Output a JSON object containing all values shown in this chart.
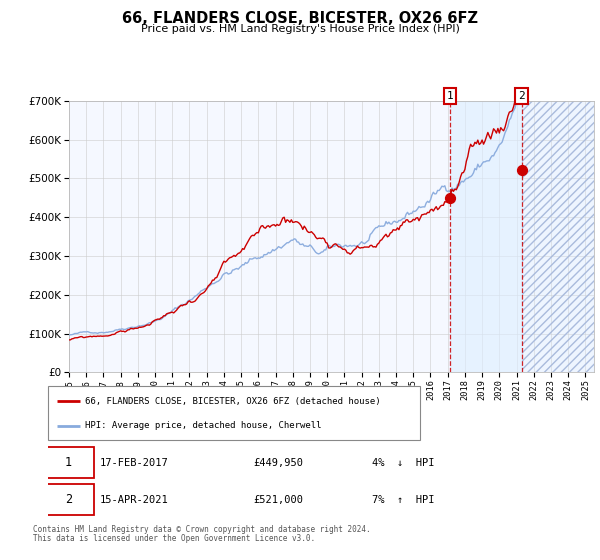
{
  "title1": "66, FLANDERS CLOSE, BICESTER, OX26 6FZ",
  "title2": "Price paid vs. HM Land Registry's House Price Index (HPI)",
  "ylim": [
    0,
    700000
  ],
  "yticks": [
    0,
    100000,
    200000,
    300000,
    400000,
    500000,
    600000,
    700000
  ],
  "ytick_labels": [
    "£0",
    "£100K",
    "£200K",
    "£300K",
    "£400K",
    "£500K",
    "£600K",
    "£700K"
  ],
  "xstart": 1995.0,
  "xend": 2025.5,
  "transaction1_x": 2017.125,
  "transaction1_price": 449950,
  "transaction2_x": 2021.292,
  "transaction2_price": 521000,
  "legend_property": "66, FLANDERS CLOSE, BICESTER, OX26 6FZ (detached house)",
  "legend_hpi": "HPI: Average price, detached house, Cherwell",
  "footnote1": "Contains HM Land Registry data © Crown copyright and database right 2024.",
  "footnote2": "This data is licensed under the Open Government Licence v3.0.",
  "color_property": "#cc0000",
  "color_hpi": "#88aadd",
  "color_vline": "#cc0000",
  "color_shading": "#ddeeff",
  "grid_color": "#cccccc",
  "chart_bg": "#f5f8ff",
  "row1_date": "17-FEB-2017",
  "row1_price": "£449,950",
  "row1_hpi": "4%  ↓  HPI",
  "row2_date": "15-APR-2021",
  "row2_price": "£521,000",
  "row2_hpi": "7%  ↑  HPI"
}
